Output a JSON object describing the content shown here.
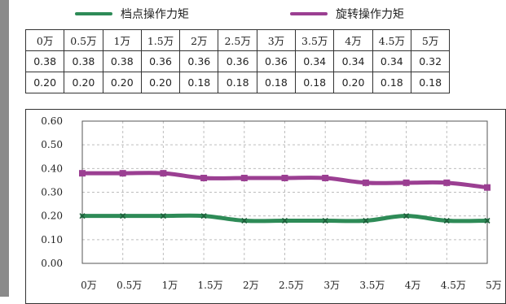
{
  "legend": [
    {
      "label": "档点操作力矩",
      "color": "#2e8b57"
    },
    {
      "label": "旋转操作力矩",
      "color": "#9b3f92"
    }
  ],
  "table": {
    "header": [
      "0万",
      "0.5万",
      "1万",
      "1.5万",
      "2万",
      "2.5万",
      "3万",
      "3.5万",
      "4万",
      "4.5万",
      "5万"
    ],
    "rows": [
      [
        "0.38",
        "0.38",
        "0.38",
        "0.36",
        "0.36",
        "0.36",
        "0.36",
        "0.34",
        "0.34",
        "0.34",
        "0.32"
      ],
      [
        "0.20",
        "0.20",
        "0.20",
        "0.20",
        "0.18",
        "0.18",
        "0.18",
        "0.18",
        "0.20",
        "0.18",
        "0.18"
      ]
    ]
  },
  "chart_data": {
    "type": "line",
    "categories": [
      "0万",
      "0.5万",
      "1万",
      "1.5万",
      "2万",
      "2.5万",
      "3万",
      "3.5万",
      "4万",
      "4.5万",
      "5万"
    ],
    "series": [
      {
        "name": "旋转操作力矩",
        "color": "#9b3f92",
        "marker": "square",
        "values": [
          0.38,
          0.38,
          0.38,
          0.36,
          0.36,
          0.36,
          0.36,
          0.34,
          0.34,
          0.34,
          0.32
        ]
      },
      {
        "name": "档点操作力矩",
        "color": "#2e8b57",
        "marker": "x",
        "values": [
          0.2,
          0.2,
          0.2,
          0.2,
          0.18,
          0.18,
          0.18,
          0.18,
          0.2,
          0.18,
          0.18
        ]
      }
    ],
    "yticks": [
      "0.00",
      "0.10",
      "0.20",
      "0.30",
      "0.40",
      "0.50",
      "0.60"
    ],
    "ylim": [
      0,
      0.6
    ],
    "title": "",
    "xlabel": "",
    "ylabel": "",
    "grid": true,
    "legend_position": "top"
  }
}
